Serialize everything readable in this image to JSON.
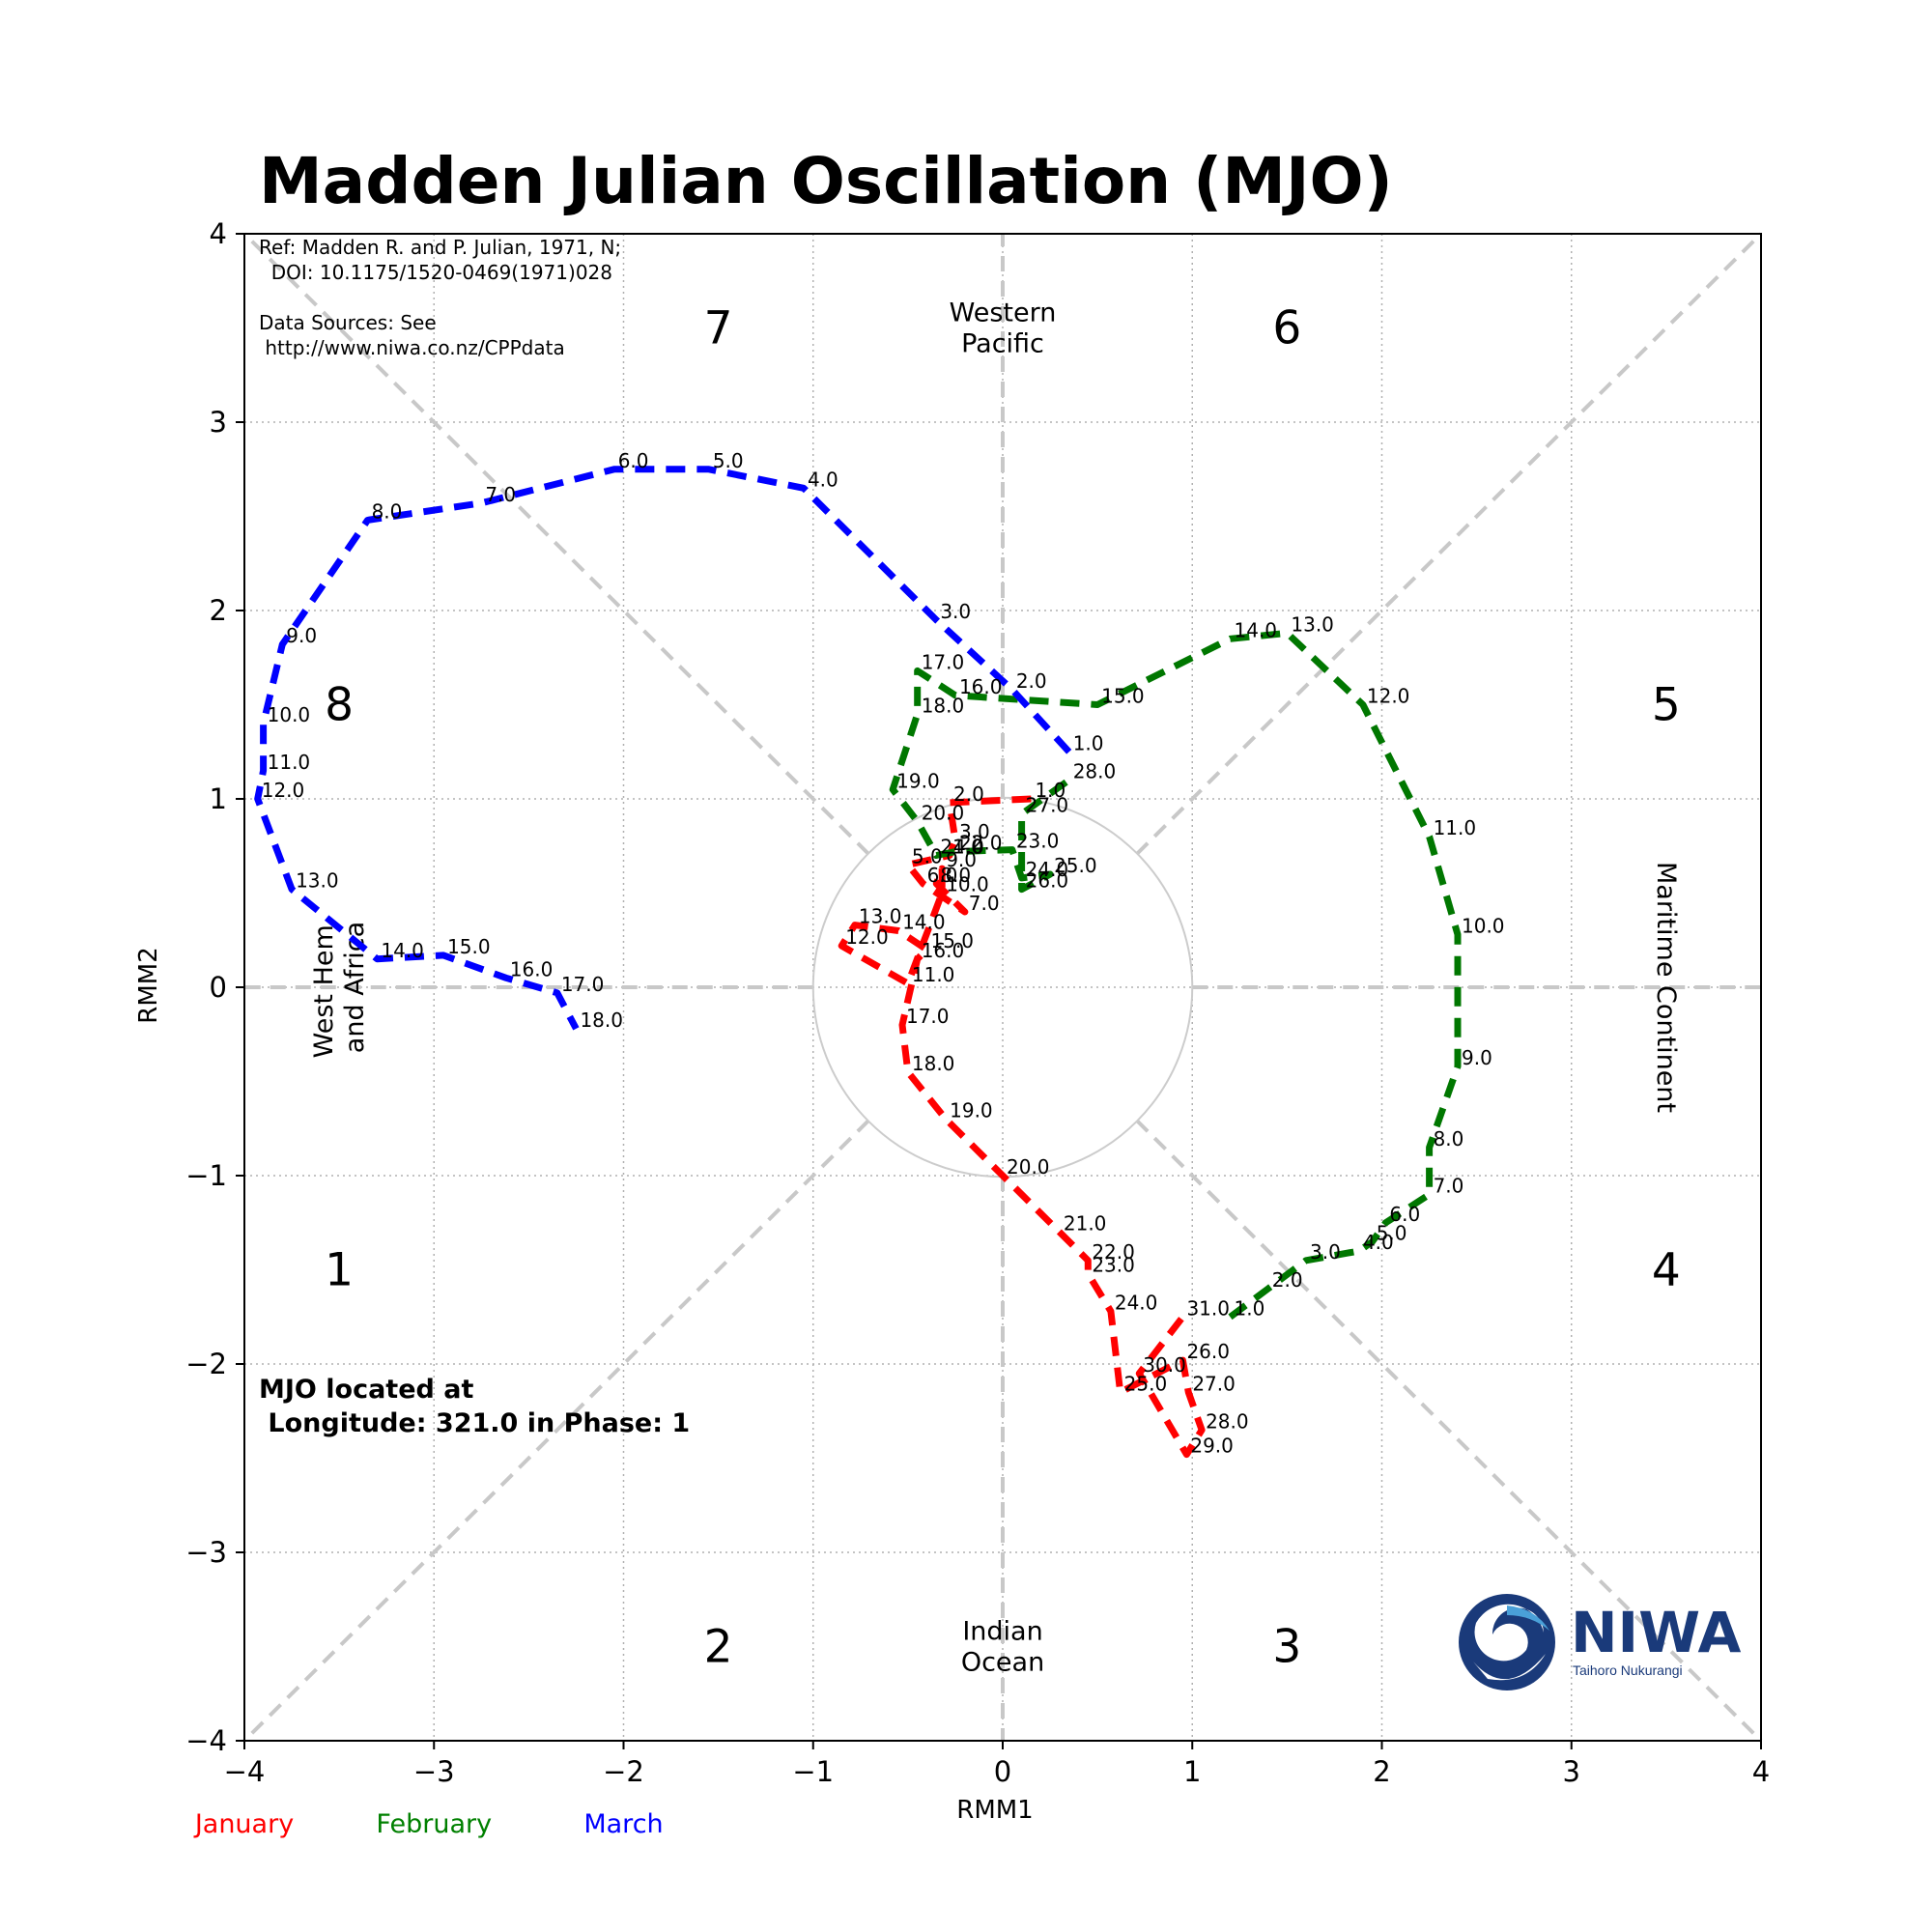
{
  "chart_data": {
    "type": "line",
    "title": "Madden Julian Oscillation (MJO)",
    "xlabel": "RMM1",
    "ylabel": "RMM2",
    "xlim": [
      -4,
      4
    ],
    "ylim": [
      -4,
      4
    ],
    "xticks": [
      -4,
      -3,
      -2,
      -1,
      0,
      1,
      2,
      3,
      4
    ],
    "yticks": [
      -4,
      -3,
      -2,
      -1,
      0,
      1,
      2,
      3,
      4
    ],
    "tick_labels": [
      "−4",
      "−3",
      "−2",
      "−1",
      "0",
      "1",
      "2",
      "3",
      "4"
    ],
    "grid": true,
    "reference_text": [
      "Ref: Madden R. and P. Julian, 1971, N;",
      "  DOI: 10.1175/1520-0469(1971)028",
      "",
      "Data Sources: See",
      " http://www.niwa.co.nz/CPPdata"
    ],
    "phases": [
      {
        "label": "1",
        "x": -3.5,
        "y": -1.5
      },
      {
        "label": "2",
        "x": -1.5,
        "y": -3.5
      },
      {
        "label": "3",
        "x": 1.5,
        "y": -3.5
      },
      {
        "label": "4",
        "x": 3.5,
        "y": -1.5
      },
      {
        "label": "5",
        "x": 3.5,
        "y": 1.5
      },
      {
        "label": "6",
        "x": 1.5,
        "y": 3.5
      },
      {
        "label": "7",
        "x": -1.5,
        "y": 3.5
      },
      {
        "label": "8",
        "x": -3.5,
        "y": 1.5
      }
    ],
    "regions": [
      {
        "lines": [
          "Western",
          "Pacific"
        ],
        "x": 0,
        "y": 3.5,
        "rotation": 0
      },
      {
        "lines": [
          "Indian",
          "Ocean"
        ],
        "x": 0,
        "y": -3.5,
        "rotation": 0
      },
      {
        "lines": [
          "West Hem.",
          "and Africa"
        ],
        "x": -3.5,
        "y": 0,
        "rotation": -90
      },
      {
        "lines": [
          "Maritime Continent"
        ],
        "x": 3.5,
        "y": 0,
        "rotation": 90
      }
    ],
    "series": [
      {
        "name": "January",
        "color": "#ff0000",
        "points": [
          {
            "x": 0.15,
            "y": 1.0,
            "label": "1.0"
          },
          {
            "x": -0.28,
            "y": 0.98,
            "label": "2.0"
          },
          {
            "x": -0.25,
            "y": 0.78,
            "label": "3.0"
          },
          {
            "x": -0.28,
            "y": 0.7,
            "label": "4.0"
          },
          {
            "x": -0.5,
            "y": 0.65,
            "label": "5.0"
          },
          {
            "x": -0.42,
            "y": 0.55,
            "label": "6.0"
          },
          {
            "x": -0.2,
            "y": 0.4,
            "label": "7.0"
          },
          {
            "x": -0.35,
            "y": 0.55,
            "label": "8.0"
          },
          {
            "x": -0.32,
            "y": 0.63,
            "label": "9.0"
          },
          {
            "x": -0.32,
            "y": 0.5,
            "label": "10.0"
          },
          {
            "x": -0.5,
            "y": 0.02,
            "label": "11.0"
          },
          {
            "x": -0.85,
            "y": 0.22,
            "label": "12.0"
          },
          {
            "x": -0.78,
            "y": 0.33,
            "label": "13.0"
          },
          {
            "x": -0.55,
            "y": 0.3,
            "label": "14.0"
          },
          {
            "x": -0.4,
            "y": 0.2,
            "label": "15.0"
          },
          {
            "x": -0.45,
            "y": 0.15,
            "label": "16.0"
          },
          {
            "x": -0.53,
            "y": -0.2,
            "label": "17.0"
          },
          {
            "x": -0.5,
            "y": -0.45,
            "label": "18.0"
          },
          {
            "x": -0.3,
            "y": -0.7,
            "label": "19.0"
          },
          {
            "x": 0.0,
            "y": -1.0,
            "label": "20.0"
          },
          {
            "x": 0.3,
            "y": -1.3,
            "label": "21.0"
          },
          {
            "x": 0.45,
            "y": -1.45,
            "label": "22.0"
          },
          {
            "x": 0.45,
            "y": -1.52,
            "label": "23.0"
          },
          {
            "x": 0.57,
            "y": -1.72,
            "label": "24.0"
          },
          {
            "x": 0.62,
            "y": -2.15,
            "label": "25.0"
          },
          {
            "x": 0.95,
            "y": -1.98,
            "label": "26.0"
          },
          {
            "x": 0.98,
            "y": -2.15,
            "label": "27.0"
          },
          {
            "x": 1.05,
            "y": -2.35,
            "label": "28.0"
          },
          {
            "x": 0.97,
            "y": -2.48,
            "label": "29.0"
          },
          {
            "x": 0.72,
            "y": -2.05,
            "label": "30.0"
          },
          {
            "x": 0.95,
            "y": -1.75,
            "label": "31.0"
          }
        ]
      },
      {
        "name": "February",
        "color": "#007700",
        "points": [
          {
            "x": 1.2,
            "y": -1.75,
            "label": "1.0"
          },
          {
            "x": 1.4,
            "y": -1.6,
            "label": "2.0"
          },
          {
            "x": 1.6,
            "y": -1.45,
            "label": "3.0"
          },
          {
            "x": 1.88,
            "y": -1.4,
            "label": "4.0"
          },
          {
            "x": 1.95,
            "y": -1.35,
            "label": "5.0"
          },
          {
            "x": 2.02,
            "y": -1.25,
            "label": "6.0"
          },
          {
            "x": 2.25,
            "y": -1.1,
            "label": "7.0"
          },
          {
            "x": 2.25,
            "y": -0.85,
            "label": "8.0"
          },
          {
            "x": 2.4,
            "y": -0.42,
            "label": "9.0"
          },
          {
            "x": 2.4,
            "y": 0.28,
            "label": "10.0"
          },
          {
            "x": 2.25,
            "y": 0.8,
            "label": "11.0"
          },
          {
            "x": 1.9,
            "y": 1.5,
            "label": "12.0"
          },
          {
            "x": 1.5,
            "y": 1.88,
            "label": "13.0"
          },
          {
            "x": 1.2,
            "y": 1.85,
            "label": "14.0"
          },
          {
            "x": 0.5,
            "y": 1.5,
            "label": "15.0"
          },
          {
            "x": -0.25,
            "y": 1.55,
            "label": "16.0"
          },
          {
            "x": -0.45,
            "y": 1.68,
            "label": "17.0"
          },
          {
            "x": -0.45,
            "y": 1.45,
            "label": "18.0"
          },
          {
            "x": -0.58,
            "y": 1.05,
            "label": "19.0"
          },
          {
            "x": -0.45,
            "y": 0.88,
            "label": "20.0"
          },
          {
            "x": -0.35,
            "y": 0.7,
            "label": "21.0"
          },
          {
            "x": -0.25,
            "y": 0.72,
            "label": "22.0"
          },
          {
            "x": 0.05,
            "y": 0.73,
            "label": "23.0"
          },
          {
            "x": 0.1,
            "y": 0.58,
            "label": "24.0"
          },
          {
            "x": 0.25,
            "y": 0.6,
            "label": "25.0"
          },
          {
            "x": 0.1,
            "y": 0.52,
            "label": "26.0"
          },
          {
            "x": 0.1,
            "y": 0.92,
            "label": "27.0"
          },
          {
            "x": 0.35,
            "y": 1.1,
            "label": "28.0"
          }
        ]
      },
      {
        "name": "March",
        "color": "#0000ff",
        "points": [
          {
            "x": 0.35,
            "y": 1.25,
            "label": "1.0"
          },
          {
            "x": 0.05,
            "y": 1.58,
            "label": "2.0"
          },
          {
            "x": -0.35,
            "y": 1.95,
            "label": "3.0"
          },
          {
            "x": -1.05,
            "y": 2.65,
            "label": "4.0"
          },
          {
            "x": -1.55,
            "y": 2.75,
            "label": "5.0"
          },
          {
            "x": -2.05,
            "y": 2.75,
            "label": "6.0"
          },
          {
            "x": -2.75,
            "y": 2.57,
            "label": "7.0"
          },
          {
            "x": -3.35,
            "y": 2.48,
            "label": "8.0"
          },
          {
            "x": -3.8,
            "y": 1.82,
            "label": "9.0"
          },
          {
            "x": -3.9,
            "y": 1.4,
            "label": "10.0"
          },
          {
            "x": -3.9,
            "y": 1.15,
            "label": "11.0"
          },
          {
            "x": -3.93,
            "y": 1.0,
            "label": "12.0"
          },
          {
            "x": -3.75,
            "y": 0.52,
            "label": "13.0"
          },
          {
            "x": -3.3,
            "y": 0.15,
            "label": "14.0"
          },
          {
            "x": -2.95,
            "y": 0.17,
            "label": "15.0"
          },
          {
            "x": -2.62,
            "y": 0.05,
            "label": "16.0"
          },
          {
            "x": -2.35,
            "y": -0.03,
            "label": "17.0"
          },
          {
            "x": -2.25,
            "y": -0.22,
            "label": "18.0"
          }
        ]
      }
    ],
    "legend": [
      {
        "label": "January",
        "color": "#ff0000"
      },
      {
        "label": "February",
        "color": "#008000"
      },
      {
        "label": "March",
        "color": "#0000ff"
      }
    ],
    "mjo_location": {
      "line1": "MJO located at",
      "line2": " Longitude: 321.0 in Phase: 1"
    }
  },
  "logo": {
    "name": "NIWA",
    "tagline": "Taihoro Nukurangi",
    "color": "#1a3a7a"
  }
}
